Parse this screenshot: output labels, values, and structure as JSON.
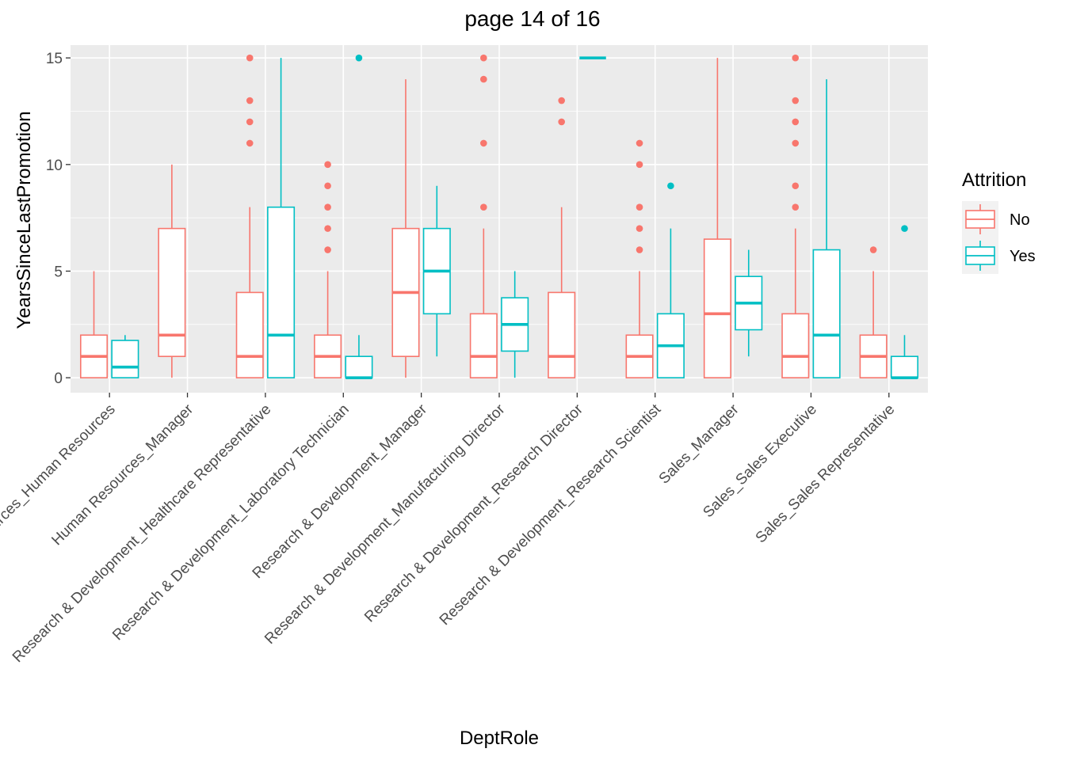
{
  "chart_data": {
    "type": "boxplot",
    "title": "page 14 of 16",
    "xlabel": "DeptRole",
    "ylabel": "YearsSinceLastPromotion",
    "ylim": [
      -0.7,
      15.6
    ],
    "yticks": [
      0,
      5,
      10,
      15
    ],
    "grid": true,
    "legend": {
      "title": "Attrition",
      "position": "right"
    },
    "colors": {
      "No": "#F8766D",
      "Yes": "#00BFC4"
    },
    "categories": [
      "Human Resources_Human Resources",
      "Human Resources_Manager",
      "Research & Development_Healthcare Representative",
      "Research & Development_Laboratory Technician",
      "Research & Development_Manager",
      "Research & Development_Manufacturing Director",
      "Research & Development_Research Director",
      "Research & Development_Research Scientist",
      "Sales_Manager",
      "Sales_Sales Executive",
      "Sales_Sales Representative"
    ],
    "series": [
      {
        "name": "No",
        "boxes": [
          {
            "min": 0,
            "q1": 0,
            "median": 1,
            "q3": 2,
            "max": 5,
            "outliers": []
          },
          {
            "min": 0,
            "q1": 1,
            "median": 2,
            "q3": 7,
            "max": 10,
            "outliers": []
          },
          {
            "min": 0,
            "q1": 0,
            "median": 1,
            "q3": 4,
            "max": 8,
            "outliers": [
              11,
              12,
              13,
              15
            ]
          },
          {
            "min": 0,
            "q1": 0,
            "median": 1,
            "q3": 2,
            "max": 5,
            "outliers": [
              6,
              7,
              8,
              9,
              10
            ]
          },
          {
            "min": 0,
            "q1": 1,
            "median": 4,
            "q3": 7,
            "max": 14,
            "outliers": []
          },
          {
            "min": 0,
            "q1": 0,
            "median": 1,
            "q3": 3,
            "max": 7,
            "outliers": [
              8,
              11,
              14,
              15
            ]
          },
          {
            "min": 0,
            "q1": 0,
            "median": 1,
            "q3": 4,
            "max": 8,
            "outliers": [
              12,
              13
            ]
          },
          {
            "min": 0,
            "q1": 0,
            "median": 1,
            "q3": 2,
            "max": 5,
            "outliers": [
              6,
              7,
              8,
              10,
              11
            ]
          },
          {
            "min": 0,
            "q1": 0,
            "median": 3,
            "q3": 6.5,
            "max": 15,
            "outliers": []
          },
          {
            "min": 0,
            "q1": 0,
            "median": 1,
            "q3": 3,
            "max": 7,
            "outliers": [
              8,
              9,
              11,
              12,
              13,
              15
            ]
          },
          {
            "min": 0,
            "q1": 0,
            "median": 1,
            "q3": 2,
            "max": 5,
            "outliers": [
              6
            ]
          }
        ]
      },
      {
        "name": "Yes",
        "boxes": [
          {
            "min": 0,
            "q1": 0,
            "median": 0.5,
            "q3": 1.75,
            "max": 2,
            "outliers": []
          },
          null,
          {
            "min": 0,
            "q1": 0,
            "median": 2,
            "q3": 8,
            "max": 15,
            "outliers": []
          },
          {
            "min": 0,
            "q1": 0,
            "median": 0,
            "q3": 1,
            "max": 2,
            "outliers": [
              15
            ]
          },
          {
            "min": 1,
            "q1": 3,
            "median": 5,
            "q3": 7,
            "max": 9,
            "outliers": []
          },
          {
            "min": 0,
            "q1": 1.25,
            "median": 2.5,
            "q3": 3.75,
            "max": 5,
            "outliers": []
          },
          {
            "min": 15,
            "q1": 15,
            "median": 15,
            "q3": 15,
            "max": 15,
            "outliers": []
          },
          {
            "min": 0,
            "q1": 0,
            "median": 1.5,
            "q3": 3,
            "max": 7,
            "outliers": [
              9
            ]
          },
          {
            "min": 1,
            "q1": 2.25,
            "median": 3.5,
            "q3": 4.75,
            "max": 6,
            "outliers": []
          },
          {
            "min": 0,
            "q1": 0,
            "median": 2,
            "q3": 6,
            "max": 14,
            "outliers": []
          },
          {
            "min": 0,
            "q1": 0,
            "median": 0,
            "q3": 1,
            "max": 2,
            "outliers": [
              7
            ]
          }
        ]
      }
    ]
  }
}
